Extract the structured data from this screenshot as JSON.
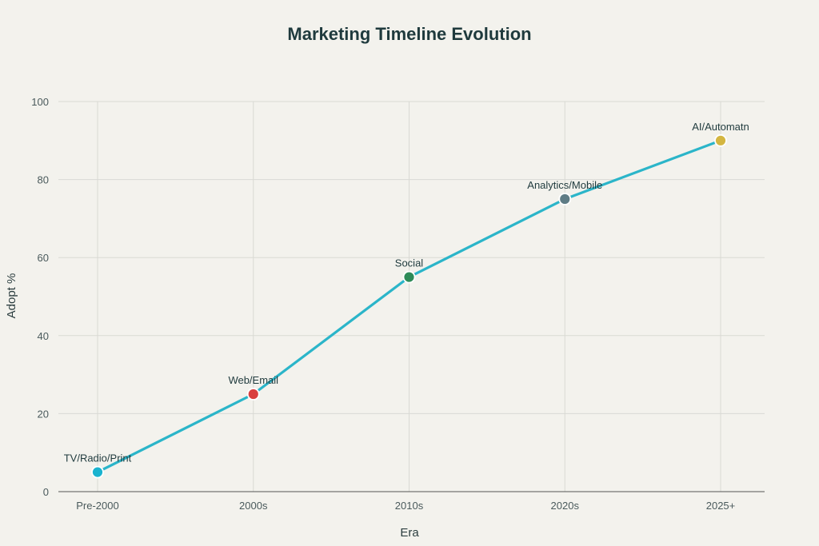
{
  "chart_data": {
    "type": "line",
    "title": "Marketing Timeline Evolution",
    "xlabel": "Era",
    "ylabel": "Adopt %",
    "categories": [
      "Pre-2000",
      "2000s",
      "2010s",
      "2020s",
      "2025+"
    ],
    "ylim": [
      0,
      100
    ],
    "yticks": [
      0,
      20,
      40,
      60,
      80,
      100
    ],
    "grid": true,
    "series": [
      {
        "values": [
          5,
          25,
          55,
          75,
          90
        ],
        "line_color": "#2bb5c9",
        "point_labels": [
          "TV/Radio/Print",
          "Web/Email",
          "Social",
          "Analytics/Mobile",
          "AI/Automatn"
        ],
        "point_colors": [
          "#1ab3cf",
          "#d9403f",
          "#2e8b57",
          "#5f7c85",
          "#d4b641"
        ]
      }
    ]
  }
}
